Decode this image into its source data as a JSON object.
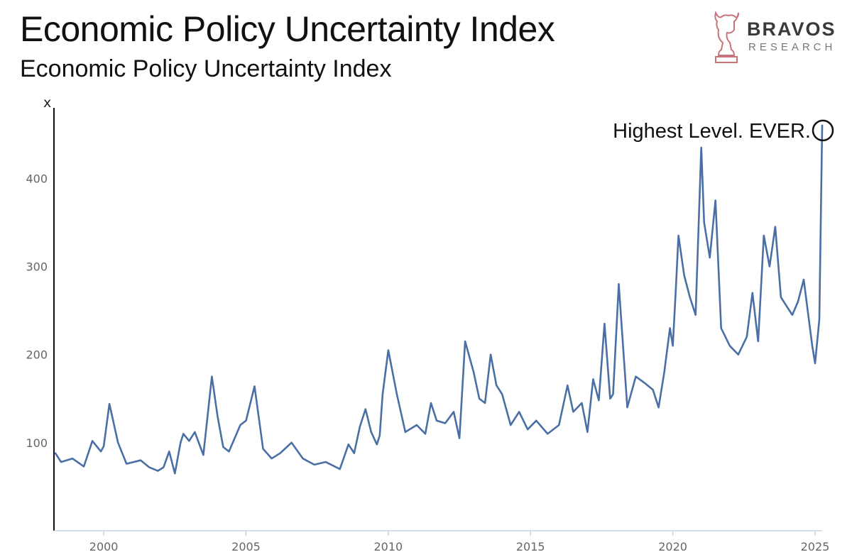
{
  "header": {
    "title": "Economic Policy Uncertainty Index",
    "subtitle": "Economic Policy Uncertainty Index"
  },
  "logo": {
    "name": "BRAVOS",
    "sub": "RESEARCH",
    "accent_color": "#c8737a"
  },
  "chart_data": {
    "type": "line",
    "title": "Economic Policy Uncertainty Index",
    "xlabel": "",
    "ylabel": "x",
    "xlim": [
      1998.25,
      2025.25
    ],
    "ylim": [
      0,
      480
    ],
    "grid": false,
    "line_color": "#4a6fa5",
    "y_ticks": [
      100,
      200,
      300,
      400
    ],
    "x_ticks": [
      2000,
      2005,
      2010,
      2015,
      2020,
      2025
    ],
    "annotation": {
      "text": "Highest Level. EVER.",
      "x": 2025.2,
      "y": 460
    },
    "series": [
      {
        "name": "Economic Policy Uncertainty Index",
        "x": [
          1998.3,
          1998.5,
          1998.9,
          1999.3,
          1999.6,
          1999.9,
          2000.0,
          2000.2,
          2000.5,
          2000.8,
          2001.3,
          2001.6,
          2001.9,
          2002.1,
          2002.3,
          2002.5,
          2002.7,
          2002.8,
          2003.0,
          2003.2,
          2003.5,
          2003.8,
          2004.0,
          2004.2,
          2004.4,
          2004.6,
          2004.8,
          2005.0,
          2005.3,
          2005.6,
          2005.9,
          2006.2,
          2006.6,
          2007.0,
          2007.4,
          2007.8,
          2008.3,
          2008.6,
          2008.8,
          2009.0,
          2009.2,
          2009.4,
          2009.6,
          2009.7,
          2009.8,
          2010.0,
          2010.3,
          2010.6,
          2011.0,
          2011.3,
          2011.5,
          2011.7,
          2012.0,
          2012.3,
          2012.5,
          2012.7,
          2013.0,
          2013.2,
          2013.4,
          2013.6,
          2013.8,
          2014.0,
          2014.3,
          2014.6,
          2014.9,
          2015.2,
          2015.6,
          2016.0,
          2016.3,
          2016.5,
          2016.8,
          2017.0,
          2017.2,
          2017.4,
          2017.6,
          2017.8,
          2017.9,
          2018.1,
          2018.4,
          2018.7,
          2019.0,
          2019.3,
          2019.5,
          2019.7,
          2019.9,
          2020.0,
          2020.1,
          2020.2,
          2020.4,
          2020.6,
          2020.8,
          2021.0,
          2021.1,
          2021.3,
          2021.5,
          2021.7,
          2022.0,
          2022.3,
          2022.6,
          2022.8,
          2023.0,
          2023.2,
          2023.4,
          2023.6,
          2023.8,
          2024.0,
          2024.2,
          2024.4,
          2024.6,
          2024.8,
          2024.9,
          2025.0,
          2025.15,
          2025.25
        ],
        "values": [
          88,
          78,
          82,
          73,
          102,
          90,
          96,
          144,
          100,
          76,
          80,
          72,
          68,
          72,
          90,
          65,
          100,
          110,
          102,
          112,
          86,
          175,
          130,
          95,
          90,
          105,
          120,
          125,
          164,
          93,
          82,
          88,
          100,
          82,
          75,
          78,
          70,
          98,
          88,
          118,
          138,
          112,
          98,
          108,
          155,
          205,
          155,
          112,
          120,
          110,
          145,
          125,
          122,
          135,
          105,
          215,
          180,
          150,
          145,
          200,
          165,
          155,
          120,
          135,
          115,
          125,
          110,
          120,
          165,
          135,
          145,
          112,
          172,
          148,
          235,
          150,
          155,
          280,
          140,
          175,
          168,
          160,
          140,
          180,
          230,
          210,
          270,
          335,
          290,
          265,
          245,
          435,
          350,
          310,
          375,
          230,
          210,
          200,
          220,
          270,
          215,
          335,
          300,
          345,
          265,
          255,
          245,
          260,
          285,
          235,
          210,
          190,
          240,
          460
        ]
      }
    ]
  }
}
